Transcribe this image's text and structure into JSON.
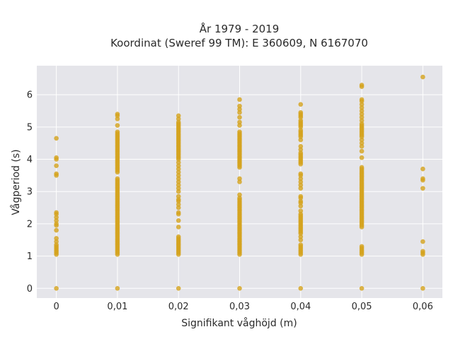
{
  "chart_data": {
    "type": "scatter",
    "title": "År 1979 - 2019",
    "subtitle": "Koordinat (Sweref 99 TM): E 360609, N 6167070",
    "xlabel": "Signifikant våghöjd (m)",
    "ylabel": "Vågperiod (s)",
    "xlim": [
      -0.0032,
      0.0632
    ],
    "ylim": [
      -0.3,
      6.9
    ],
    "x_ticks": [
      0,
      0.01,
      0.02,
      0.03,
      0.04,
      0.05,
      0.06
    ],
    "x_tick_labels": [
      "0",
      "0,01",
      "0,02",
      "0,03",
      "0,04",
      "0,05",
      "0,06"
    ],
    "y_ticks": [
      0,
      1,
      2,
      3,
      4,
      5,
      6
    ],
    "y_tick_labels": [
      "0",
      "1",
      "2",
      "3",
      "4",
      "5",
      "6"
    ],
    "grid": true,
    "colors": {
      "marker": "#d4a21c",
      "plot_bg": "#e5e5ea"
    },
    "series": [
      {
        "x": 0,
        "y": [
          0,
          1.05,
          1.1,
          1.15,
          1.2,
          1.25,
          1.3,
          1.35,
          1.45,
          1.55,
          1.8,
          1.95,
          2.0,
          2.1,
          2.2,
          2.3,
          2.35,
          3.5,
          3.55,
          3.8,
          4.0,
          4.05,
          4.65
        ]
      },
      {
        "x": 0.01,
        "y": [
          0,
          1.05,
          1.1,
          1.15,
          1.2,
          1.25,
          1.3,
          1.35,
          1.4,
          1.45,
          1.5,
          1.55,
          1.6,
          1.65,
          1.7,
          1.75,
          1.8,
          1.85,
          1.9,
          1.95,
          2.0,
          2.05,
          2.1,
          2.15,
          2.2,
          2.25,
          2.3,
          2.35,
          2.4,
          2.45,
          2.5,
          2.55,
          2.6,
          2.65,
          2.7,
          2.75,
          2.8,
          2.85,
          2.9,
          2.95,
          3.0,
          3.05,
          3.1,
          3.15,
          3.2,
          3.25,
          3.3,
          3.35,
          3.4,
          3.6,
          3.65,
          3.7,
          3.75,
          3.8,
          3.85,
          3.9,
          3.95,
          4.0,
          4.05,
          4.1,
          4.15,
          4.2,
          4.25,
          4.3,
          4.35,
          4.4,
          4.45,
          4.5,
          4.55,
          4.6,
          4.65,
          4.7,
          4.75,
          4.8,
          4.85,
          5.05,
          5.25,
          5.35,
          5.4
        ]
      },
      {
        "x": 0.02,
        "y": [
          0,
          1.05,
          1.1,
          1.15,
          1.2,
          1.25,
          1.3,
          1.35,
          1.4,
          1.45,
          1.5,
          1.55,
          1.6,
          1.9,
          2.1,
          2.3,
          2.35,
          2.5,
          2.6,
          2.7,
          2.75,
          2.85,
          3.0,
          3.1,
          3.2,
          3.3,
          3.4,
          3.5,
          3.6,
          3.7,
          3.8,
          3.9,
          4.0,
          4.05,
          4.1,
          4.15,
          4.2,
          4.25,
          4.3,
          4.35,
          4.4,
          4.45,
          4.5,
          4.55,
          4.6,
          4.65,
          4.7,
          4.75,
          4.8,
          4.85,
          4.9,
          4.95,
          5.0,
          5.05,
          5.1,
          5.15,
          5.25,
          5.35
        ]
      },
      {
        "x": 0.03,
        "y": [
          0,
          1.05,
          1.1,
          1.15,
          1.2,
          1.25,
          1.3,
          1.35,
          1.4,
          1.45,
          1.5,
          1.55,
          1.6,
          1.65,
          1.7,
          1.75,
          1.8,
          1.85,
          1.9,
          1.95,
          2.0,
          2.05,
          2.1,
          2.15,
          2.2,
          2.25,
          2.3,
          2.35,
          2.4,
          2.45,
          2.5,
          2.55,
          2.6,
          2.65,
          2.7,
          2.75,
          2.8,
          2.9,
          3.3,
          3.4,
          3.75,
          3.8,
          3.85,
          3.9,
          3.95,
          4.0,
          4.05,
          4.1,
          4.15,
          4.2,
          4.25,
          4.3,
          4.35,
          4.4,
          4.45,
          4.5,
          4.55,
          4.6,
          4.65,
          4.7,
          4.75,
          4.8,
          4.85,
          5.05,
          5.15,
          5.3,
          5.45,
          5.55,
          5.65,
          5.85
        ]
      },
      {
        "x": 0.04,
        "y": [
          0,
          1.05,
          1.1,
          1.15,
          1.2,
          1.25,
          1.3,
          1.35,
          1.5,
          1.6,
          1.7,
          1.75,
          1.8,
          1.85,
          1.9,
          1.95,
          2.0,
          2.05,
          2.1,
          2.15,
          2.2,
          2.25,
          2.3,
          2.4,
          2.55,
          2.65,
          2.7,
          2.8,
          2.85,
          3.1,
          3.2,
          3.3,
          3.4,
          3.5,
          3.55,
          3.85,
          3.9,
          3.95,
          4.0,
          4.05,
          4.1,
          4.15,
          4.2,
          4.3,
          4.4,
          4.6,
          4.7,
          4.75,
          4.8,
          4.85,
          4.9,
          5.0,
          5.05,
          5.1,
          5.15,
          5.2,
          5.3,
          5.35,
          5.4,
          5.45,
          5.7
        ]
      },
      {
        "x": 0.05,
        "y": [
          0,
          1.05,
          1.1,
          1.15,
          1.2,
          1.25,
          1.3,
          1.9,
          1.95,
          2.0,
          2.05,
          2.1,
          2.15,
          2.2,
          2.25,
          2.3,
          2.35,
          2.4,
          2.45,
          2.5,
          2.55,
          2.6,
          2.65,
          2.7,
          2.75,
          2.8,
          2.85,
          2.9,
          2.95,
          3.0,
          3.05,
          3.1,
          3.15,
          3.2,
          3.25,
          3.3,
          3.35,
          3.4,
          3.45,
          3.5,
          3.55,
          3.6,
          3.65,
          3.7,
          3.75,
          4.05,
          4.25,
          4.4,
          4.5,
          4.6,
          4.7,
          4.75,
          4.8,
          4.85,
          4.9,
          4.95,
          5.0,
          5.05,
          5.1,
          5.2,
          5.3,
          5.4,
          5.5,
          5.6,
          5.7,
          5.8,
          5.85,
          6.25,
          6.3
        ]
      },
      {
        "x": 0.06,
        "y": [
          0,
          1.05,
          1.1,
          1.15,
          1.45,
          3.1,
          3.35,
          3.4,
          3.7,
          6.55
        ]
      }
    ]
  }
}
